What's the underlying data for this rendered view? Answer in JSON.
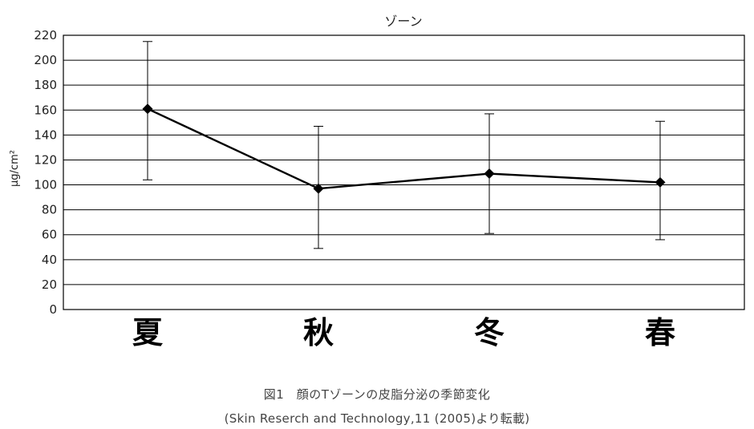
{
  "chart_data": {
    "type": "line",
    "title": "ゾーン",
    "ylabel": "μg/cm²",
    "xlabel": "",
    "categories": [
      "夏",
      "秋",
      "冬",
      "春"
    ],
    "series": [
      {
        "values": [
          161,
          97,
          109,
          102
        ],
        "error_low": [
          104,
          49,
          61,
          56
        ],
        "error_high": [
          215,
          147,
          157,
          151
        ]
      }
    ],
    "ylim": [
      0,
      220
    ],
    "yticks": [
      0,
      20,
      40,
      60,
      80,
      100,
      120,
      140,
      160,
      180,
      200,
      220
    ],
    "grid": true,
    "marker": "diamond",
    "color": "#000000"
  },
  "caption": {
    "line1": "図1　顔のTゾーンの皮脂分泌の季節変化",
    "line2": "(Skin Reserch and Technology,11 (2005)より転載)"
  }
}
